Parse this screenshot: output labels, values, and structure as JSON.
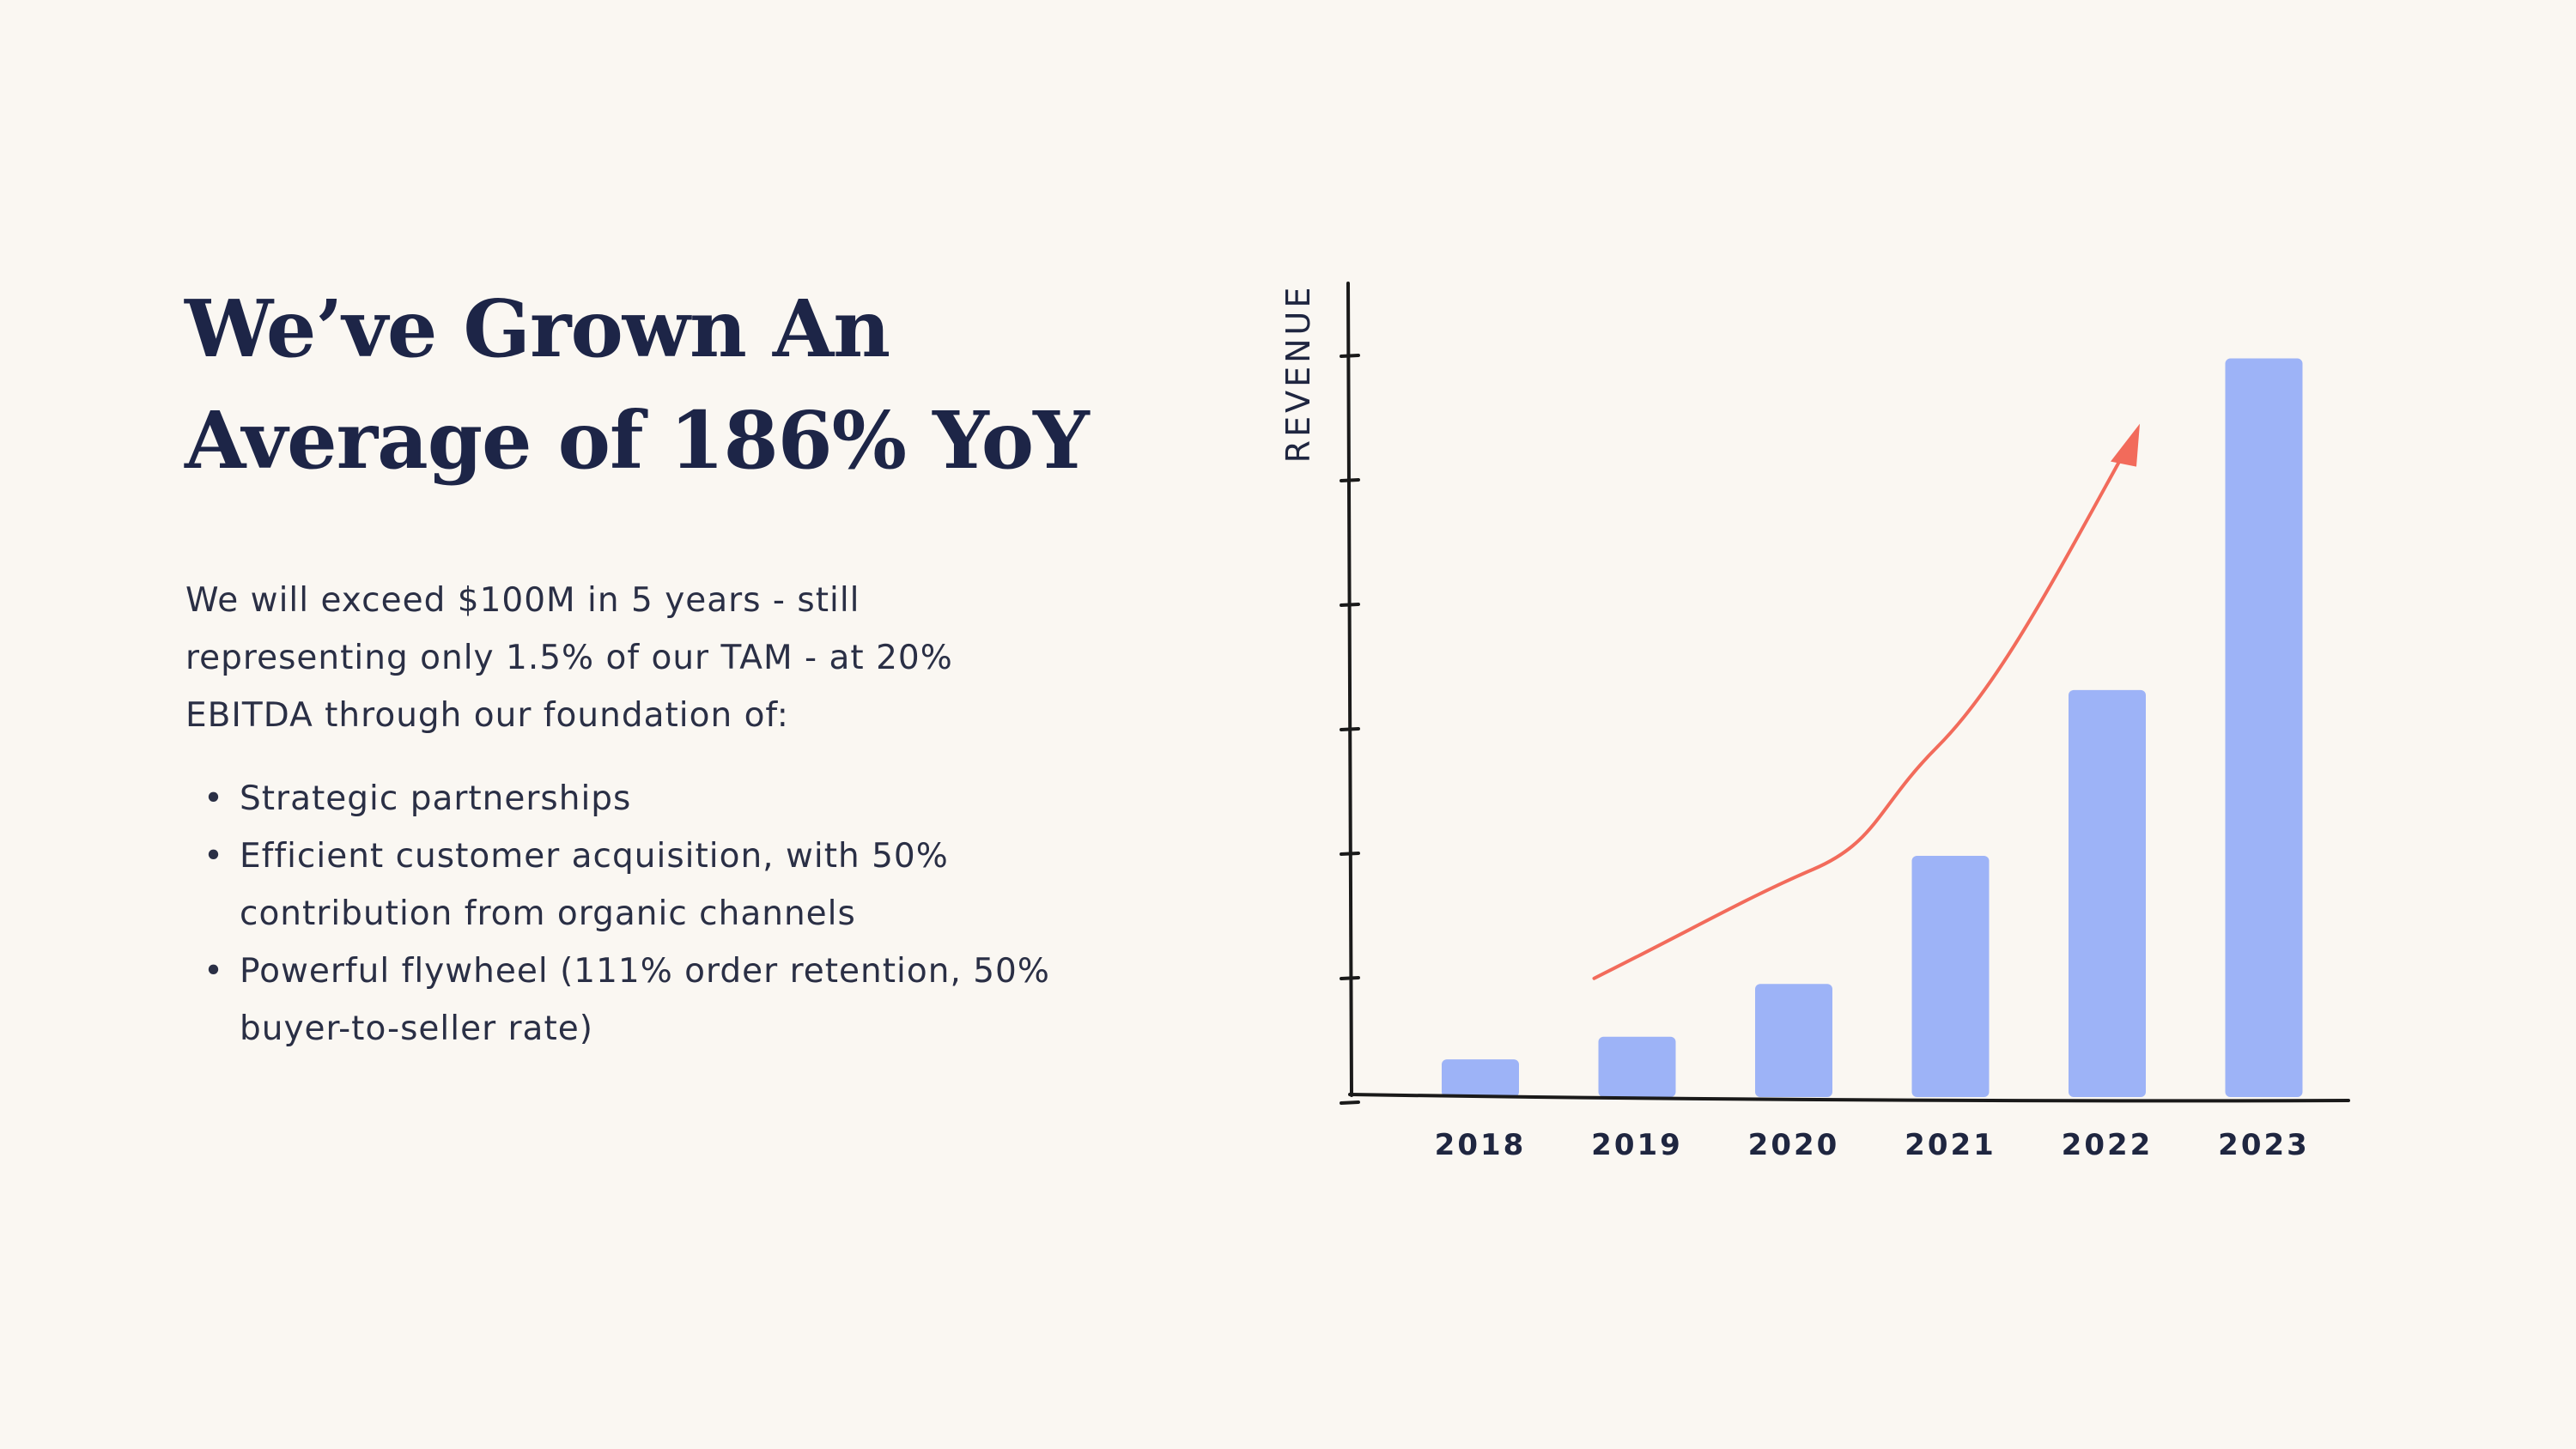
{
  "slide": {
    "title_lines": [
      "We’ve Grown An",
      "Average of 186% YoY"
    ],
    "paragraph_lines": [
      "We will exceed $100M in 5 years - still",
      "representing only 1.5% of our TAM - at 20%",
      "EBITDA through our foundation of:"
    ],
    "bullet_char": "•",
    "bullets": [
      {
        "lines": [
          "Strategic partnerships"
        ]
      },
      {
        "lines": [
          "Efficient customer acquisition, with 50%",
          "contribution from organic channels"
        ]
      },
      {
        "lines": [
          "Powerful flywheel (111% order retention, 50%",
          "buyer-to-seller rate)"
        ]
      }
    ]
  },
  "chart_data": {
    "type": "bar",
    "categories": [
      "2018",
      "2019",
      "2020",
      "2021",
      "2022",
      "2023"
    ],
    "values": [
      0.5,
      0.8,
      1.5,
      3.2,
      5.4,
      9.8
    ],
    "ylim": [
      0,
      10
    ],
    "xlabel": "",
    "ylabel": "REVENUE",
    "y_tick_count": 6,
    "y_tick_labels_shown": false,
    "grid": false,
    "bar_color": "#9db3f7",
    "axis_color": "#1a1a1a",
    "trend_arrow": {
      "color": "#f26b5b",
      "from_category": "2019",
      "to_category": "2022",
      "from_value": 1.7,
      "to_value": 8.0
    }
  }
}
